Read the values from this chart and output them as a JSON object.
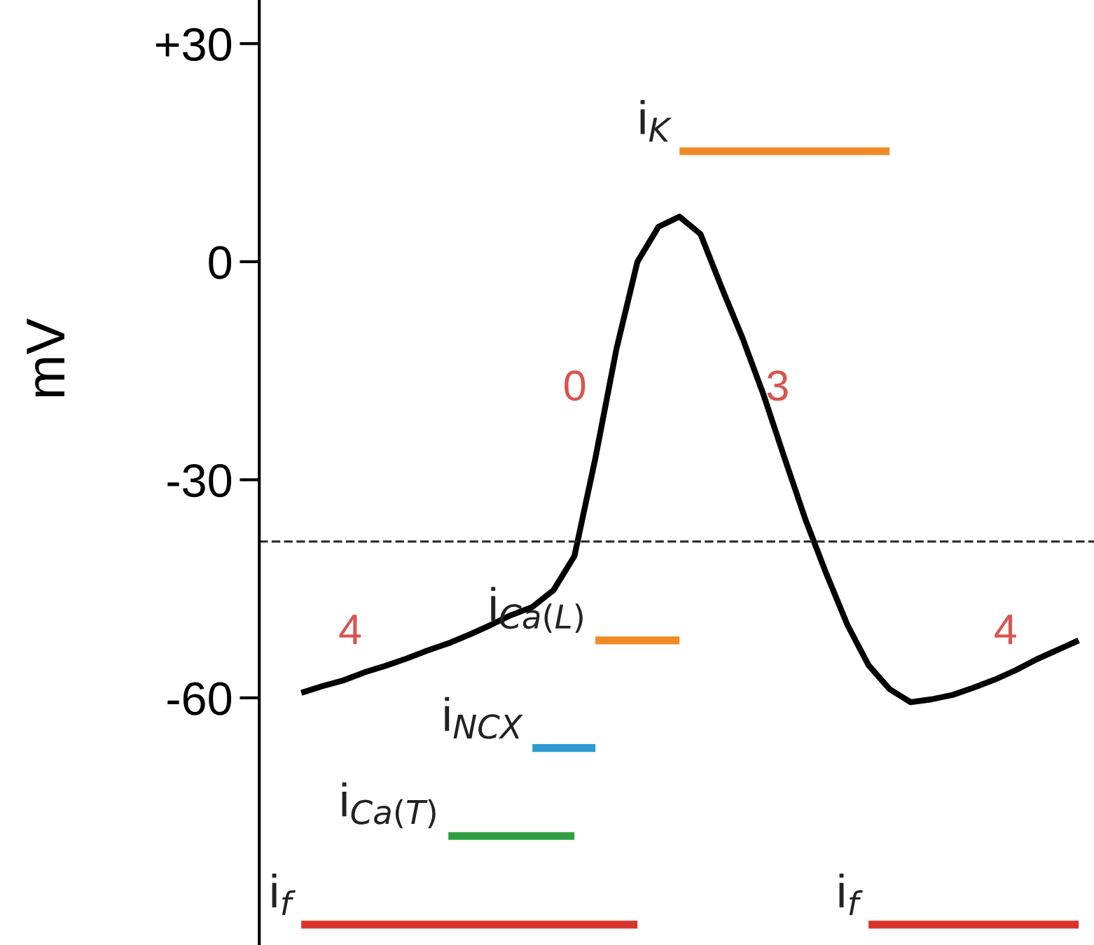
{
  "chart_data": {
    "type": "line",
    "ylabel": "mV",
    "tick_labels": "y",
    "grid": false,
    "ylim": [
      -94,
      36
    ],
    "categories": [
      null,
      null,
      null,
      null,
      null,
      null,
      null,
      null,
      null,
      null,
      null,
      null,
      null,
      null,
      null,
      null,
      null,
      null,
      null,
      null,
      null,
      null,
      null,
      null,
      null,
      null,
      null,
      null,
      null,
      null,
      null,
      null,
      null,
      null,
      null,
      null,
      null,
      null,
      null,
      null
    ],
    "yticks": [
      {
        "value": 30,
        "label": "+30"
      },
      0,
      -30,
      -60
    ],
    "ref_lines": [
      {
        "axis": "y",
        "value": -38.5,
        "line_style": "dashed",
        "color": "#333333"
      }
    ],
    "annotations": [
      "4",
      "0",
      "3",
      "4"
    ],
    "series": [
      {
        "color": "#000000",
        "values": [
          null,
          null,
          -59.3,
          -58.4,
          -57.6,
          -56.5,
          -55.6,
          -54.6,
          -53.5,
          -52.5,
          -51.3,
          -50.0,
          -48.6,
          -47.5,
          -45.2,
          -40.5,
          -27,
          -12,
          0,
          4.8,
          6.2,
          3.8,
          -3.5,
          -10.5,
          -18.3,
          -27,
          -35.5,
          -43,
          -50,
          -55.5,
          -58.8,
          -60.6,
          -60.2,
          -59.6,
          -58.6,
          -57.5,
          -56.2,
          -54.7,
          -53.4,
          -52.1
        ]
      },
      {
        "name": "i$_{K}$",
        "color": "#f08a24",
        "values": [
          null,
          null,
          null,
          null,
          null,
          null,
          null,
          null,
          null,
          null,
          null,
          null,
          null,
          null,
          null,
          null,
          null,
          null,
          null,
          null,
          15.2,
          15.2,
          15.2,
          15.2,
          15.2,
          15.2,
          15.2,
          15.2,
          15.2,
          15.2,
          15.2,
          null,
          null,
          null,
          null,
          null,
          null,
          null,
          null,
          null
        ]
      },
      {
        "name": "i$_{Ca(L)}$",
        "color": "#f08a24",
        "values": [
          null,
          null,
          null,
          null,
          null,
          null,
          null,
          null,
          null,
          null,
          null,
          null,
          null,
          null,
          null,
          null,
          -52.1,
          -52.1,
          -52.1,
          -52.1,
          -52.1,
          null,
          null,
          null,
          null,
          null,
          null,
          null,
          null,
          null,
          null,
          null,
          null,
          null,
          null,
          null,
          null,
          null,
          null,
          null
        ]
      },
      {
        "name": "i$_{NCX}$",
        "color": "#2e9ad0",
        "values": [
          null,
          null,
          null,
          null,
          null,
          null,
          null,
          null,
          null,
          null,
          null,
          null,
          null,
          -66.9,
          -66.9,
          -66.9,
          -66.9,
          null,
          null,
          null,
          null,
          null,
          null,
          null,
          null,
          null,
          null,
          null,
          null,
          null,
          null,
          null,
          null,
          null,
          null,
          null,
          null,
          null,
          null,
          null
        ]
      },
      {
        "name": "i$_{Ca(T)}$",
        "color": "#2ea043",
        "values": [
          null,
          null,
          null,
          null,
          null,
          null,
          null,
          null,
          null,
          -79,
          -79,
          -79,
          -79,
          -79,
          -79,
          -79,
          null,
          null,
          null,
          null,
          null,
          null,
          null,
          null,
          null,
          null,
          null,
          null,
          null,
          null,
          null,
          null,
          null,
          null,
          null,
          null,
          null,
          null,
          null,
          null
        ]
      },
      {
        "name": "i$_{f}$",
        "color": "#d9342b",
        "values": [
          null,
          null,
          -91.2,
          -91.2,
          -91.2,
          -91.2,
          -91.2,
          -91.2,
          -91.2,
          -91.2,
          -91.2,
          -91.2,
          -91.2,
          -91.2,
          -91.2,
          -91.2,
          -91.2,
          -91.2,
          -91.2,
          null,
          null,
          null,
          null,
          null,
          null,
          null,
          null,
          null,
          null,
          -91.2,
          -91.2,
          -91.2,
          -91.2,
          -91.2,
          -91.2,
          -91.2,
          -91.2,
          -91.2,
          -91.2,
          -91.2
        ]
      }
    ]
  }
}
